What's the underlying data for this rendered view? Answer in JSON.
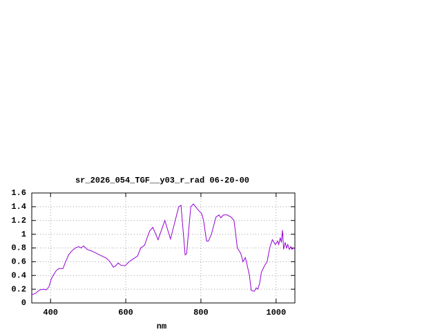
{
  "chart_data": {
    "type": "line",
    "title": "sr_2026_054_TGF__y03_r_rad 06-20-00",
    "xlabel": "nm",
    "xlim": [
      350,
      1050
    ],
    "xticks": [
      400,
      600,
      800,
      1000
    ],
    "ylim": [
      0,
      1.6
    ],
    "yticks": [
      0,
      0.2,
      0.4,
      0.6,
      0.8,
      1,
      1.2,
      1.4,
      1.6
    ],
    "grid": true,
    "series": [
      {
        "color": "#9400d3",
        "x": [
          350,
          360,
          371,
          382,
          389,
          396,
          402,
          407,
          415,
          422,
          433,
          440,
          448,
          457,
          466,
          475,
          481,
          488,
          497,
          512,
          530,
          549,
          558,
          567,
          573,
          580,
          587,
          598,
          609,
          622,
          631,
          640,
          650,
          657,
          664,
          672,
          686,
          704,
          719,
          741,
          747,
          758,
          762,
          773,
          780,
          793,
          802,
          807,
          815,
          820,
          828,
          840,
          848,
          853,
          860,
          870,
          880,
          888,
          897,
          906,
          912,
          918,
          921,
          929,
          934,
          942,
          947,
          951,
          956,
          961,
          970,
          976,
          983,
          990,
          998,
          1004,
          1007,
          1011,
          1014,
          1017,
          1020,
          1024,
          1028,
          1031,
          1035,
          1039,
          1042,
          1046,
          1050
        ],
        "values": [
          0.12,
          0.14,
          0.19,
          0.2,
          0.19,
          0.24,
          0.35,
          0.4,
          0.47,
          0.5,
          0.5,
          0.6,
          0.7,
          0.76,
          0.8,
          0.82,
          0.8,
          0.83,
          0.78,
          0.75,
          0.7,
          0.65,
          0.6,
          0.52,
          0.54,
          0.58,
          0.55,
          0.54,
          0.6,
          0.65,
          0.68,
          0.8,
          0.84,
          0.95,
          1.05,
          1.1,
          0.92,
          1.2,
          0.93,
          1.4,
          1.42,
          0.7,
          0.72,
          1.4,
          1.44,
          1.35,
          1.3,
          1.2,
          0.9,
          0.9,
          1.0,
          1.25,
          1.28,
          1.24,
          1.28,
          1.28,
          1.25,
          1.2,
          0.8,
          0.72,
          0.6,
          0.66,
          0.6,
          0.4,
          0.18,
          0.17,
          0.22,
          0.2,
          0.28,
          0.45,
          0.55,
          0.6,
          0.8,
          0.92,
          0.85,
          0.9,
          0.85,
          0.95,
          0.88,
          1.06,
          0.78,
          0.88,
          0.8,
          0.85,
          0.78,
          0.82,
          0.78,
          0.8,
          0.79
        ]
      }
    ]
  }
}
